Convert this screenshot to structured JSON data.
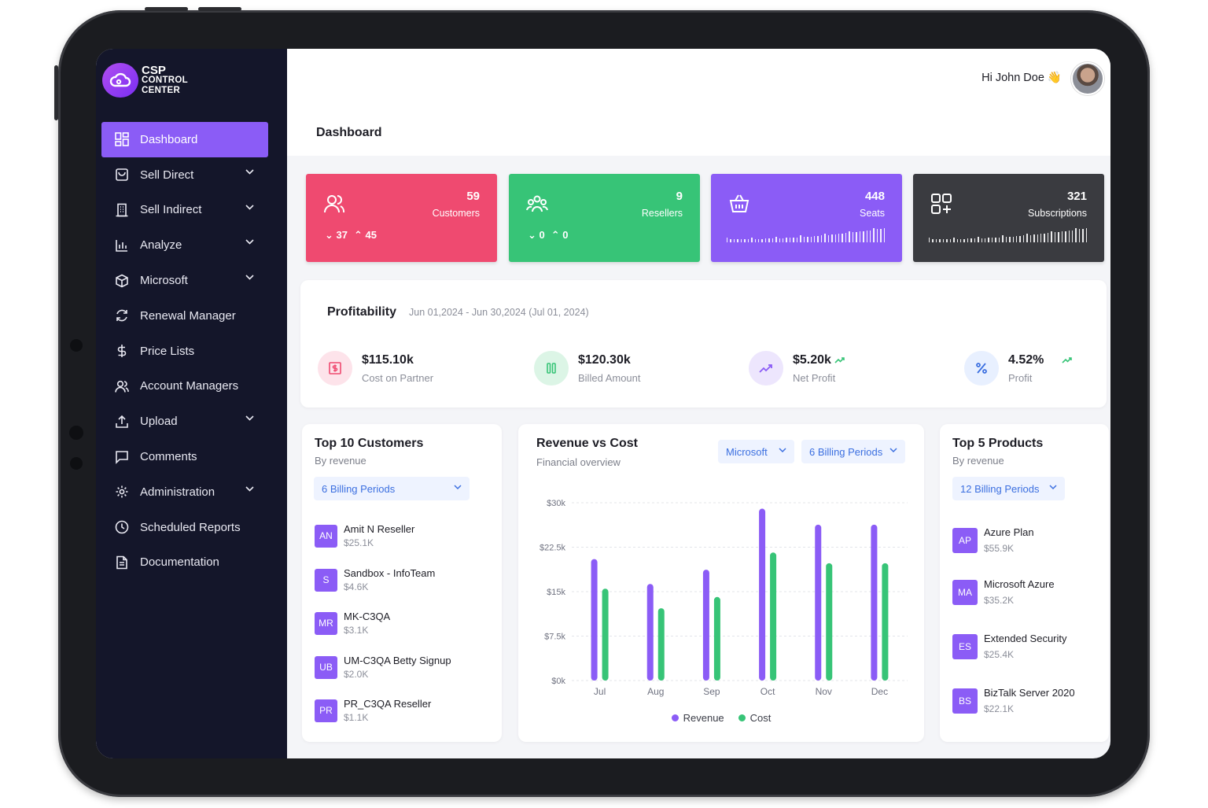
{
  "app": {
    "logo_lines": [
      "CSP",
      "CONTROL",
      "CENTER"
    ]
  },
  "sidebar": {
    "items": [
      {
        "label": "Dashboard",
        "icon": "dashboard-icon",
        "active": true,
        "has_chevron": false
      },
      {
        "label": "Sell Direct",
        "icon": "shopping-bag-icon",
        "has_chevron": true
      },
      {
        "label": "Sell Indirect",
        "icon": "building-icon",
        "has_chevron": true
      },
      {
        "label": "Analyze",
        "icon": "bar-chart-icon",
        "has_chevron": true
      },
      {
        "label": "Microsoft",
        "icon": "cube-icon",
        "has_chevron": true
      },
      {
        "label": "Renewal Manager",
        "icon": "refresh-icon",
        "has_chevron": false
      },
      {
        "label": "Price Lists",
        "icon": "dollar-icon",
        "has_chevron": false
      },
      {
        "label": "Account Managers",
        "icon": "users-icon",
        "has_chevron": false
      },
      {
        "label": "Upload",
        "icon": "upload-icon",
        "has_chevron": true
      },
      {
        "label": "Comments",
        "icon": "comment-icon",
        "has_chevron": false
      },
      {
        "label": "Administration",
        "icon": "gear-icon",
        "has_chevron": true
      },
      {
        "label": "Scheduled Reports",
        "icon": "clock-icon",
        "has_chevron": false
      },
      {
        "label": "Documentation",
        "icon": "document-icon",
        "has_chevron": false
      }
    ]
  },
  "header": {
    "greeting": "Hi John Doe 👋",
    "page_title": "Dashboard"
  },
  "stats": [
    {
      "value": "59",
      "label": "Customers",
      "color": "#ef4a70",
      "down": "37",
      "up": "45"
    },
    {
      "value": "9",
      "label": "Resellers",
      "color": "#37c477",
      "down": "0",
      "up": "0"
    },
    {
      "value": "448",
      "label": "Seats",
      "color": "#8b5cf6"
    },
    {
      "value": "321",
      "label": "Subscriptions",
      "color": "#3a3b40"
    }
  ],
  "profitability": {
    "title": "Profitability",
    "range": "Jun 01,2024 - Jun 30,2024 (Jul 01, 2024)",
    "metrics": [
      {
        "value": "$115.10k",
        "label": "Cost on Partner"
      },
      {
        "value": "$120.30k",
        "label": "Billed Amount"
      },
      {
        "value": "$5.20k",
        "label": "Net Profit"
      },
      {
        "value": "4.52%",
        "label": "Profit"
      }
    ]
  },
  "top_customers": {
    "title": "Top 10 Customers",
    "subtitle": "By revenue",
    "filter": "6 Billing Periods",
    "items": [
      {
        "initials": "AN",
        "name": "Amit N Reseller",
        "value": "$25.1K"
      },
      {
        "initials": "S",
        "name": "Sandbox - InfoTeam",
        "value": "$4.6K"
      },
      {
        "initials": "MR",
        "name": "MK-C3QA",
        "value": "$3.1K"
      },
      {
        "initials": "UB",
        "name": "UM-C3QA Betty Signup",
        "value": "$2.0K"
      },
      {
        "initials": "PR",
        "name": "PR_C3QA Reseller",
        "value": "$1.1K"
      }
    ]
  },
  "revenue_chart": {
    "title": "Revenue vs Cost",
    "subtitle": "Financial overview",
    "filter_vendor": "Microsoft",
    "filter_period": "6 Billing Periods",
    "legend": [
      "Revenue",
      "Cost"
    ]
  },
  "top_products": {
    "title": "Top 5 Products",
    "subtitle": "By revenue",
    "filter": "12 Billing Periods",
    "items": [
      {
        "initials": "AP",
        "name": "Azure Plan",
        "value": "$55.9K"
      },
      {
        "initials": "MA",
        "name": "Microsoft Azure",
        "value": "$35.2K"
      },
      {
        "initials": "ES",
        "name": "Extended Security",
        "value": "$25.4K"
      },
      {
        "initials": "BS",
        "name": "BizTalk Server 2020",
        "value": "$22.1K"
      }
    ]
  },
  "chart_data": {
    "type": "bar",
    "title": "Revenue vs Cost",
    "categories": [
      "Jul",
      "Aug",
      "Sep",
      "Oct",
      "Nov",
      "Dec"
    ],
    "series": [
      {
        "name": "Revenue",
        "color": "#8b5cf6",
        "values": [
          20.5,
          16.3,
          18.7,
          29.0,
          26.3,
          26.3
        ]
      },
      {
        "name": "Cost",
        "color": "#37c477",
        "values": [
          15.5,
          12.2,
          14.1,
          21.6,
          19.8,
          19.8
        ]
      }
    ],
    "yticks": [
      "$30k",
      "$22.5k",
      "$15k",
      "$7.5k",
      "$0k"
    ],
    "ylim": [
      0,
      30
    ],
    "grid": true,
    "legend": "bottom"
  },
  "colors": {
    "accent": "#8b5cf6",
    "sidebar_bg": "#14162a",
    "link": "#3b6fe0"
  }
}
